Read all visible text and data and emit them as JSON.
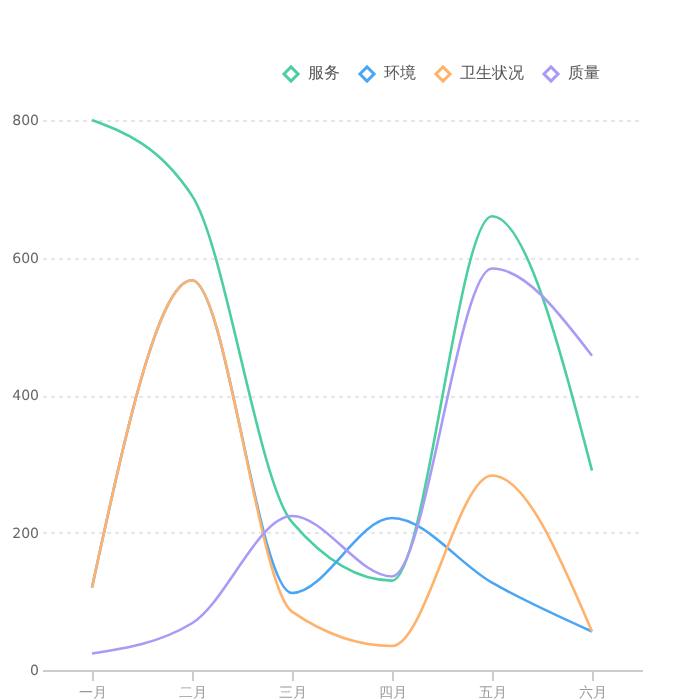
{
  "chart_data": {
    "type": "line",
    "categories": [
      "一月",
      "二月",
      "三月",
      "四月",
      "五月",
      "六月"
    ],
    "series": [
      {
        "name": "服务",
        "color": "#4ccf9f",
        "values": [
          800,
          690,
          215,
          130,
          660,
          290
        ]
      },
      {
        "name": "环境",
        "color": "#4aa6f5",
        "values": [
          120,
          567,
          112,
          221,
          127,
          56
        ]
      },
      {
        "name": "卫生状况",
        "color": "#ffb26b",
        "values": [
          120,
          567,
          85,
          35,
          283,
          56
        ]
      },
      {
        "name": "质量",
        "color": "#a99bf5",
        "values": [
          24,
          68,
          224,
          136,
          584,
          457
        ]
      }
    ],
    "ylim": [
      0,
      800
    ],
    "yticks": [
      0,
      200,
      400,
      600,
      800
    ],
    "grid": "y",
    "legend": "top right",
    "marker": "none",
    "line_style": "solid"
  }
}
